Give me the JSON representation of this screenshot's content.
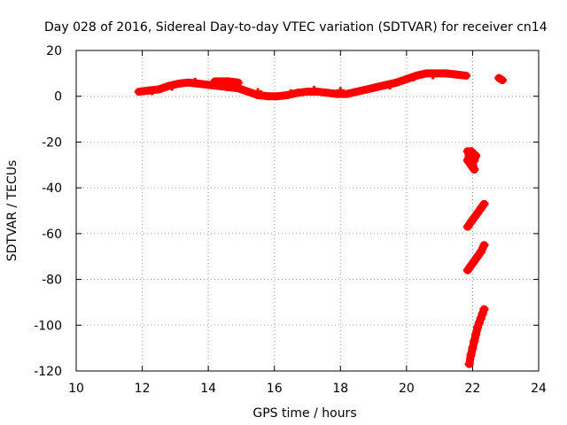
{
  "chart_data": {
    "type": "scatter",
    "title": "Day 028 of 2016, Sidereal Day-to-day VTEC variation (SDTVAR) for receiver cn14",
    "xlabel": "GPS time / hours",
    "ylabel": "SDTVAR / TECUs",
    "xlim": [
      10,
      24
    ],
    "ylim": [
      -120,
      20
    ],
    "xticks": [
      "10",
      "12",
      "14",
      "16",
      "18",
      "20",
      "22",
      "24"
    ],
    "yticks": [
      "20",
      "0",
      "-20",
      "-40",
      "-60",
      "-80",
      "-100",
      "-120"
    ],
    "grid": true,
    "marker_color": "#ff0000",
    "series": [
      {
        "points": [
          [
            11.9,
            2
          ],
          [
            12.2,
            2.5
          ],
          [
            12.5,
            3
          ],
          [
            12.8,
            4.5
          ],
          [
            13.1,
            5.5
          ],
          [
            13.4,
            6
          ],
          [
            13.7,
            5.5
          ],
          [
            14.0,
            5
          ],
          [
            14.3,
            4.5
          ],
          [
            14.6,
            4
          ],
          [
            14.9,
            3.5
          ],
          [
            15.2,
            2
          ],
          [
            15.5,
            0.5
          ],
          [
            15.8,
            0
          ],
          [
            16.1,
            0
          ],
          [
            16.4,
            0.5
          ],
          [
            16.7,
            1.5
          ],
          [
            17.0,
            2
          ],
          [
            17.3,
            2
          ],
          [
            17.6,
            1.5
          ],
          [
            17.9,
            1
          ],
          [
            18.2,
            1
          ],
          [
            18.5,
            2
          ],
          [
            18.8,
            3
          ],
          [
            19.1,
            4
          ],
          [
            19.4,
            5
          ],
          [
            19.7,
            6
          ],
          [
            20.0,
            7.5
          ],
          [
            20.3,
            9
          ],
          [
            20.6,
            10
          ],
          [
            20.9,
            10
          ],
          [
            21.2,
            10
          ],
          [
            21.5,
            9.5
          ],
          [
            21.8,
            9
          ],
          [
            12.3,
            2
          ],
          [
            12.9,
            4
          ],
          [
            13.6,
            6.5
          ],
          [
            14.2,
            6.5
          ],
          [
            14.6,
            6.5
          ],
          [
            14.9,
            6
          ],
          [
            15.5,
            2
          ],
          [
            16.5,
            1.5
          ],
          [
            17.2,
            3
          ],
          [
            18.0,
            2.5
          ],
          [
            19.5,
            4.5
          ],
          [
            20.2,
            8
          ],
          [
            20.8,
            9
          ],
          [
            22.8,
            8
          ],
          [
            22.9,
            7
          ]
        ]
      },
      {
        "points": [
          [
            21.85,
            -24
          ],
          [
            21.9,
            -26
          ],
          [
            21.95,
            -28
          ],
          [
            22.0,
            -30
          ],
          [
            22.05,
            -32
          ],
          [
            21.85,
            -28
          ],
          [
            21.95,
            -24
          ],
          [
            22.1,
            -26
          ],
          [
            22.05,
            -28
          ]
        ]
      },
      {
        "points": [
          [
            21.85,
            -57
          ],
          [
            21.95,
            -55
          ],
          [
            22.05,
            -53
          ],
          [
            22.15,
            -51
          ],
          [
            22.25,
            -49
          ],
          [
            22.35,
            -47
          ]
        ]
      },
      {
        "points": [
          [
            21.85,
            -76
          ],
          [
            21.95,
            -74
          ],
          [
            22.05,
            -72
          ],
          [
            22.15,
            -70
          ],
          [
            22.25,
            -68
          ],
          [
            22.35,
            -65
          ]
        ]
      },
      {
        "points": [
          [
            21.9,
            -117
          ],
          [
            21.95,
            -113
          ],
          [
            22.0,
            -110
          ],
          [
            22.05,
            -107
          ],
          [
            22.1,
            -104
          ],
          [
            22.15,
            -101
          ],
          [
            22.2,
            -99
          ],
          [
            22.25,
            -97
          ],
          [
            22.3,
            -95
          ],
          [
            22.35,
            -93
          ]
        ]
      }
    ]
  }
}
